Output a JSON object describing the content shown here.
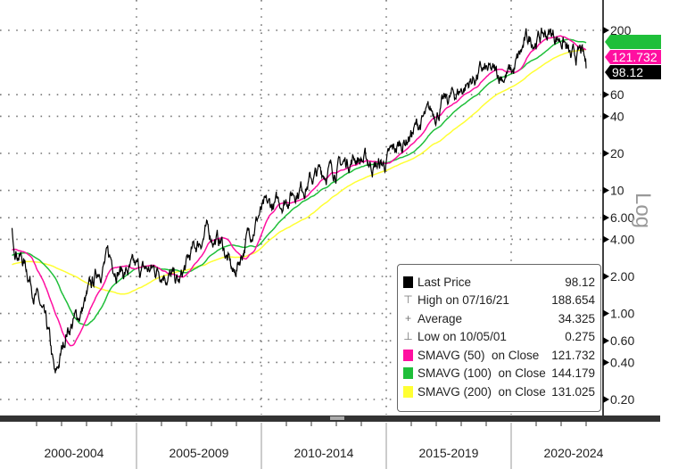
{
  "chart_data": {
    "type": "line",
    "y_scale": "log",
    "y_axis_label": "Log",
    "y_ticks": [
      200,
      60,
      40,
      20,
      10,
      6,
      4,
      2,
      1,
      0.6,
      0.4,
      0.2
    ],
    "y_tick_labels": [
      "200",
      "60",
      "40",
      "20",
      "10",
      "6.00",
      "4.00",
      "2.00",
      "1.00",
      "0.60",
      "0.40",
      "0.20"
    ],
    "x_range": [
      2000,
      2023
    ],
    "x_period_labels": [
      "2000-2004",
      "2005-2009",
      "2010-2014",
      "2015-2019",
      "2020-2024"
    ],
    "grid": true,
    "legend_placement": "bottom-right",
    "series": [
      {
        "name": "Last Price",
        "color": "#000000",
        "points": [
          [
            2000.0,
            4.0
          ],
          [
            2000.3,
            3.2
          ],
          [
            2000.6,
            2.35
          ],
          [
            2001.1,
            1.2
          ],
          [
            2001.5,
            0.6
          ],
          [
            2001.75,
            0.275
          ],
          [
            2002.2,
            0.73
          ],
          [
            2002.75,
            1.0
          ],
          [
            2003.2,
            1.6
          ],
          [
            2003.5,
            2.35
          ],
          [
            2003.85,
            2.8
          ],
          [
            2004.5,
            2.2
          ],
          [
            2005.25,
            2.2
          ],
          [
            2006.1,
            2.3
          ],
          [
            2006.7,
            1.7
          ],
          [
            2007.2,
            3.0
          ],
          [
            2007.75,
            4.6
          ],
          [
            2008.4,
            3.8
          ],
          [
            2008.9,
            2.0
          ],
          [
            2009.4,
            4.0
          ],
          [
            2009.9,
            6.5
          ],
          [
            2010.6,
            7.5
          ],
          [
            2011.3,
            10
          ],
          [
            2012.4,
            14
          ],
          [
            2013.2,
            16
          ],
          [
            2013.8,
            19
          ],
          [
            2014.5,
            16
          ],
          [
            2014.9,
            16
          ],
          [
            2015.6,
            24
          ],
          [
            2016.3,
            34
          ],
          [
            2017.4,
            52
          ],
          [
            2018.3,
            75
          ],
          [
            2018.8,
            92
          ],
          [
            2019.4,
            85
          ],
          [
            2020.1,
            92
          ],
          [
            2020.6,
            160
          ],
          [
            2021.0,
            175
          ],
          [
            2021.54,
            188.654
          ],
          [
            2022.1,
            170
          ],
          [
            2022.4,
            110
          ],
          [
            2022.8,
            130
          ],
          [
            2023.0,
            98.12
          ]
        ]
      },
      {
        "name": "SMAVG (50)  on Close",
        "color": "#ff0fa0",
        "window_weeks": 50
      },
      {
        "name": "SMAVG (100)  on Close",
        "color": "#1fbf3a",
        "window_weeks": 100
      },
      {
        "name": "SMAVG (200)  on Close",
        "color": "#ffff33",
        "window_weeks": 200
      }
    ],
    "price_tags": [
      {
        "value": "144.179",
        "color": "#1fbf3a",
        "text_color": "#1fbf3a"
      },
      {
        "value": "121.732",
        "color": "#ff0fa0",
        "text_color": "#ffffff"
      },
      {
        "value": "98.12",
        "color": "#000000",
        "text_color": "#ffffff"
      }
    ],
    "legend": [
      {
        "icon": "black-square",
        "label": "Last Price",
        "value": "98.12",
        "color": "#000000"
      },
      {
        "icon": "high-marker",
        "label": "High on 07/16/21",
        "value": "188.654"
      },
      {
        "icon": "average-marker",
        "label": "Average",
        "value": "34.325"
      },
      {
        "icon": "low-marker",
        "label": "Low on 10/05/01",
        "value": "0.275"
      },
      {
        "icon": "pink-square",
        "label": "SMAVG (50)  on Close",
        "value": "121.732",
        "color": "#ff0fa0"
      },
      {
        "icon": "green-square",
        "label": "SMAVG (100)  on Close",
        "value": "144.179",
        "color": "#1fbf3a"
      },
      {
        "icon": "yellow-square",
        "label": "SMAVG (200)  on Close",
        "value": "131.025",
        "color": "#ffff33"
      }
    ]
  }
}
